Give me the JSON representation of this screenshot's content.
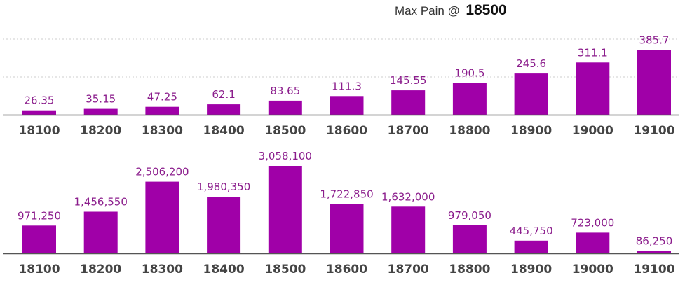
{
  "title": {
    "label": "Max Pain @",
    "value": "18500"
  },
  "colors": {
    "bar": "#a000a8",
    "label": "#8b1d8c",
    "axis": "#555555",
    "grid": "#cccccc"
  },
  "chart_data": [
    {
      "type": "bar",
      "categories": [
        "18100",
        "18200",
        "18300",
        "18400",
        "18500",
        "18600",
        "18700",
        "18800",
        "18900",
        "19000",
        "19100"
      ],
      "values": [
        26.35,
        35.15,
        47.25,
        62.1,
        83.65,
        111.3,
        145.55,
        190.5,
        245.6,
        311.1,
        385.7
      ],
      "value_labels": [
        "26.35",
        "35.15",
        "47.25",
        "62.1",
        "83.65",
        "111.3",
        "145.55",
        "190.5",
        "245.6",
        "311.1",
        "385.7"
      ],
      "ylim": [
        0,
        450
      ],
      "grid": true
    },
    {
      "type": "bar",
      "categories": [
        "18100",
        "18200",
        "18300",
        "18400",
        "18500",
        "18600",
        "18700",
        "18800",
        "18900",
        "19000",
        "19100"
      ],
      "values": [
        971250,
        1456550,
        2506200,
        1980350,
        3058100,
        1722850,
        1632000,
        979050,
        445750,
        723000,
        86250
      ],
      "value_labels": [
        "971,250",
        "1,456,550",
        "2,506,200",
        "1,980,350",
        "3,058,100",
        "1,722,850",
        "1,632,000",
        "979,050",
        "445,750",
        "723,000",
        "86,250"
      ],
      "ylim": [
        0,
        3058100
      ],
      "grid": false
    }
  ]
}
